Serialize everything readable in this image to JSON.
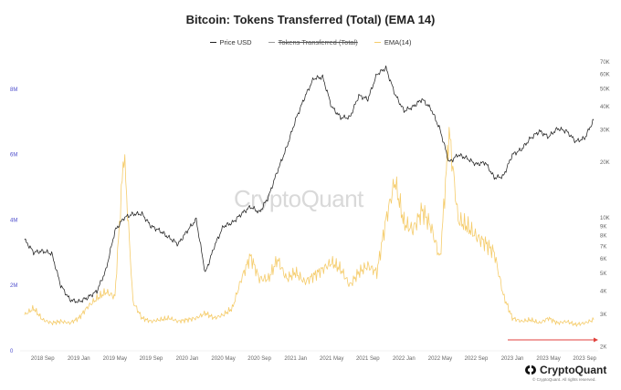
{
  "chart_data": {
    "type": "line",
    "title": "Bitcoin: Tokens Transferred (Total) (EMA 14)",
    "legend": [
      {
        "label": "Price USD",
        "color": "#222222",
        "struck": false
      },
      {
        "label": "Tokens Transferred (Total)",
        "color": "#9a9a9a",
        "struck": true
      },
      {
        "label": "EMA(14)",
        "color": "#f5cc6b",
        "struck": false
      }
    ],
    "legend_position": "top-center",
    "grid": false,
    "x_ticks": [
      "2018 Sep",
      "2019 Jan",
      "2019 May",
      "2019 Sep",
      "2020 Jan",
      "2020 May",
      "2020 Sep",
      "2021 Jan",
      "2021 May",
      "2021 Sep",
      "2022 Jan",
      "2022 May",
      "2022 Sep",
      "2023 Jan",
      "2023 May",
      "2023 Sep"
    ],
    "x_range": [
      "2018-07",
      "2023-10"
    ],
    "y_left": {
      "ticks": [
        "0",
        "2M",
        "4M",
        "6M",
        "8M"
      ],
      "range": [
        0,
        9000000
      ],
      "color": "#4d4dcc"
    },
    "y_right": {
      "scale": "log",
      "ticks": [
        "2K",
        "3K",
        "4K",
        "5K",
        "6K",
        "7K",
        "8K",
        "9K",
        "10K",
        "20K",
        "30K",
        "40K",
        "50K",
        "60K",
        "70K"
      ],
      "range": [
        1900,
        75000
      ]
    },
    "series": [
      {
        "name": "Price USD",
        "axis": "right",
        "color": "#222222",
        "x": [
          "2018-07",
          "2018-08",
          "2018-09",
          "2018-10",
          "2018-11",
          "2018-12",
          "2019-01",
          "2019-02",
          "2019-03",
          "2019-04",
          "2019-05",
          "2019-06",
          "2019-07",
          "2019-08",
          "2019-09",
          "2019-10",
          "2019-11",
          "2019-12",
          "2020-01",
          "2020-02",
          "2020-03",
          "2020-04",
          "2020-05",
          "2020-06",
          "2020-07",
          "2020-08",
          "2020-09",
          "2020-10",
          "2020-11",
          "2020-12",
          "2021-01",
          "2021-02",
          "2021-03",
          "2021-04",
          "2021-05",
          "2021-06",
          "2021-07",
          "2021-08",
          "2021-09",
          "2021-10",
          "2021-11",
          "2021-12",
          "2022-01",
          "2022-02",
          "2022-03",
          "2022-04",
          "2022-05",
          "2022-06",
          "2022-07",
          "2022-08",
          "2022-09",
          "2022-10",
          "2022-11",
          "2022-12",
          "2023-01",
          "2023-02",
          "2023-03",
          "2023-04",
          "2023-05",
          "2023-06",
          "2023-07",
          "2023-08",
          "2023-09",
          "2023-10"
        ],
        "values": [
          7600,
          6500,
          6600,
          6400,
          4300,
          3600,
          3500,
          3700,
          4000,
          5200,
          8500,
          10000,
          10500,
          10500,
          9000,
          8500,
          7800,
          7200,
          8500,
          9800,
          5000,
          7000,
          9000,
          9400,
          10500,
          11500,
          10700,
          13000,
          18000,
          24000,
          34000,
          45000,
          57000,
          58000,
          40000,
          35000,
          35000,
          46000,
          44000,
          60000,
          65000,
          47000,
          38000,
          40000,
          44000,
          39000,
          30000,
          20000,
          22000,
          21000,
          19500,
          20000,
          16500,
          16800,
          22000,
          23500,
          27000,
          29500,
          27500,
          30500,
          29500,
          26000,
          27000,
          34000
        ]
      },
      {
        "name": "EMA(14)",
        "axis": "left",
        "color": "#f5cc6b",
        "x": [
          "2018-07",
          "2018-08",
          "2018-09",
          "2018-10",
          "2018-11",
          "2018-12",
          "2019-01",
          "2019-02",
          "2019-03",
          "2019-04",
          "2019-05",
          "2019-06",
          "2019-07",
          "2019-08",
          "2019-09",
          "2019-10",
          "2019-11",
          "2019-12",
          "2020-01",
          "2020-02",
          "2020-03",
          "2020-04",
          "2020-05",
          "2020-06",
          "2020-07",
          "2020-08",
          "2020-09",
          "2020-10",
          "2020-11",
          "2020-12",
          "2021-01",
          "2021-02",
          "2021-03",
          "2021-04",
          "2021-05",
          "2021-06",
          "2021-07",
          "2021-08",
          "2021-09",
          "2021-10",
          "2021-11",
          "2021-12",
          "2022-01",
          "2022-02",
          "2022-03",
          "2022-04",
          "2022-05",
          "2022-06",
          "2022-07",
          "2022-08",
          "2022-09",
          "2022-10",
          "2022-11",
          "2022-12",
          "2023-01",
          "2023-02",
          "2023-03",
          "2023-04",
          "2023-05",
          "2023-06",
          "2023-07",
          "2023-08",
          "2023-09",
          "2023-10"
        ],
        "values": [
          1100000,
          1300000,
          950000,
          850000,
          900000,
          850000,
          1000000,
          1350000,
          1600000,
          1800000,
          1650000,
          6100000,
          1500000,
          1000000,
          900000,
          950000,
          1000000,
          900000,
          950000,
          1000000,
          1150000,
          1000000,
          1100000,
          1300000,
          2200000,
          2900000,
          2200000,
          2200000,
          2800000,
          2200000,
          2400000,
          2100000,
          2300000,
          2500000,
          2700000,
          2500000,
          2000000,
          2400000,
          2600000,
          2400000,
          4000000,
          5200000,
          3900000,
          3700000,
          4300000,
          3800000,
          2800000,
          6700000,
          4000000,
          3800000,
          3500000,
          3300000,
          3000000,
          1700000,
          1000000,
          900000,
          950000,
          850000,
          1000000,
          850000,
          900000,
          800000,
          850000,
          950000
        ]
      }
    ],
    "annotations": [
      "red arrow pointing right at the lower-right of the plot"
    ]
  },
  "watermark": "CryptoQuant",
  "brand": {
    "name": "CryptoQuant",
    "copyright": "© CryptoQuant. All rights reserved."
  }
}
